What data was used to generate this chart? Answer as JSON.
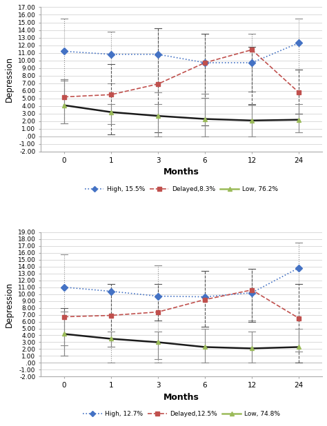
{
  "months": [
    0,
    1,
    3,
    6,
    12,
    24
  ],
  "chart1": {
    "ylim": [
      -2.0,
      17.0
    ],
    "yticks": [
      -2.0,
      -1.0,
      0.0,
      1.0,
      2.0,
      3.0,
      4.0,
      5.0,
      6.0,
      7.0,
      8.0,
      9.0,
      10.0,
      11.0,
      12.0,
      13.0,
      14.0,
      15.0,
      16.0,
      17.0
    ],
    "ytick_labels": [
      "-2.00",
      "-1.00",
      ".00",
      "1.00",
      "2.00",
      "3.00",
      "4.00",
      "5.00",
      "6.00",
      "7.00",
      "8.00",
      "9.00",
      "10.00",
      "11.00",
      "12.00",
      "13.00",
      "14.00",
      "15.00",
      "16.00",
      "17.00"
    ],
    "high": {
      "y": [
        11.2,
        10.8,
        10.8,
        9.7,
        9.7,
        12.3
      ],
      "yerr_high": [
        15.5,
        13.8,
        14.2,
        13.5,
        13.5,
        15.5
      ],
      "yerr_low_val": [
        7.3,
        7.0,
        5.8,
        5.6,
        5.9,
        8.8
      ],
      "color": "#4472C4"
    },
    "delayed": {
      "y": [
        5.2,
        5.5,
        6.9,
        9.7,
        11.4,
        5.8
      ],
      "yerr_high": [
        7.5,
        9.5,
        14.2,
        13.5,
        11.8,
        8.8
      ],
      "yerr_low_val": [
        1.7,
        0.3,
        0.5,
        1.4,
        4.2,
        3.0
      ],
      "color": "#C0504D"
    },
    "low": {
      "y": [
        4.1,
        3.2,
        2.7,
        2.3,
        2.1,
        2.2
      ],
      "yerr_high": [
        7.5,
        4.3,
        4.3,
        5.1,
        4.3,
        4.3
      ],
      "yerr_low_val": [
        1.7,
        1.6,
        0.0,
        0.0,
        0.0,
        0.5
      ],
      "color": "#9BBB59"
    },
    "legend_labels": [
      "High, 15.5%",
      "Delayed,8.3%",
      "Low, 76.2%"
    ]
  },
  "chart2": {
    "ylim": [
      -2.0,
      19.0
    ],
    "yticks": [
      -2.0,
      -1.0,
      0.0,
      1.0,
      2.0,
      3.0,
      4.0,
      5.0,
      6.0,
      7.0,
      8.0,
      9.0,
      10.0,
      11.0,
      12.0,
      13.0,
      14.0,
      15.0,
      16.0,
      17.0,
      18.0,
      19.0
    ],
    "ytick_labels": [
      "-2.00",
      "-1.00",
      ".00",
      "1.00",
      "2.00",
      "3.00",
      "4.00",
      "5.00",
      "6.00",
      "7.00",
      "8.00",
      "9.00",
      "10.00",
      "11.00",
      "12.00",
      "13.00",
      "14.00",
      "15.00",
      "16.00",
      "17.00",
      "18.00",
      "19.00"
    ],
    "high": {
      "y": [
        11.0,
        10.4,
        9.7,
        9.6,
        10.2,
        13.8
      ],
      "yerr_high": [
        15.8,
        11.5,
        14.2,
        13.4,
        13.7,
        17.5
      ],
      "yerr_low_val": [
        2.5,
        0.0,
        0.0,
        5.3,
        6.2,
        11.5
      ],
      "color": "#4472C4"
    },
    "delayed": {
      "y": [
        6.7,
        6.9,
        7.4,
        9.2,
        10.6,
        6.5
      ],
      "yerr_high": [
        8.0,
        11.5,
        11.5,
        13.4,
        13.7,
        11.5
      ],
      "yerr_low_val": [
        1.0,
        2.3,
        6.2,
        5.3,
        6.0,
        0.0
      ],
      "color": "#C0504D"
    },
    "low": {
      "y": [
        4.2,
        3.5,
        3.0,
        2.3,
        2.1,
        2.3
      ],
      "yerr_high": [
        7.5,
        4.5,
        4.5,
        5.0,
        4.5,
        5.0
      ],
      "yerr_low_val": [
        1.0,
        2.3,
        0.5,
        0.0,
        0.0,
        1.6
      ],
      "color": "#9BBB59"
    },
    "legend_labels": [
      "High, 12.7%",
      "Delayed,12.5%",
      "Low, 74.8%"
    ]
  },
  "xlabel": "Months",
  "ylabel": "Depression",
  "xtick_labels": [
    "0",
    "1",
    "3",
    "6",
    "12",
    "24"
  ],
  "bg_color": "#FFFFFF",
  "ebar_color_high": "#777777",
  "ebar_color_delayed": "#555555",
  "ebar_color_low": "#888888"
}
